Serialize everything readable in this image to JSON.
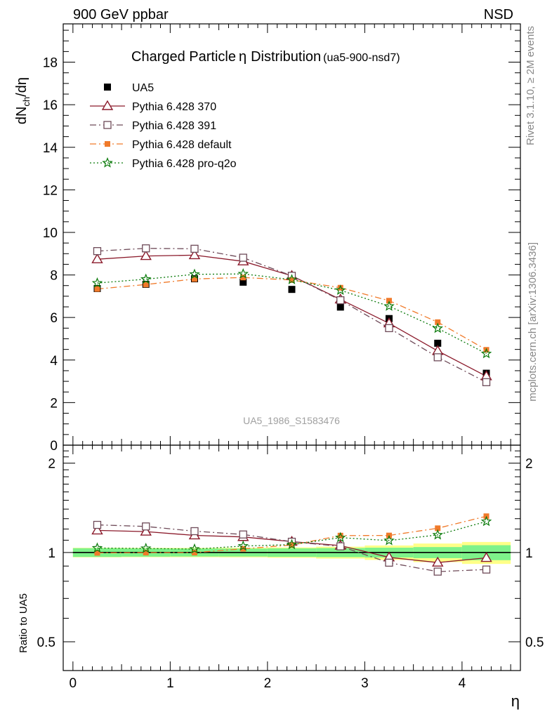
{
  "header": {
    "left": "900 GeV ppbar",
    "right": "NSD"
  },
  "side_labels": {
    "rivet": "Rivet 3.1.10, ≥ 2M events",
    "mcplots": "mcplots.cern.ch [arXiv:1306.3436]"
  },
  "chart_data": [
    {
      "type": "line",
      "title": "Charged Particle",
      "title_symbol": "η",
      "title_tail": "Distribution",
      "subtitle": "(ua5-900-nsd7)",
      "ylabel": "dN",
      "ylabel_sub": "ch",
      "ylabel_tail": "/dη",
      "watermark": "UA5_1986_S1583476",
      "xlim": [
        -0.1,
        4.6
      ],
      "ylim": [
        0,
        19.8
      ],
      "yticks": [
        0,
        2,
        4,
        6,
        8,
        10,
        12,
        14,
        16,
        18
      ],
      "legend_position": "top-left",
      "x": [
        0.25,
        0.75,
        1.25,
        1.75,
        2.25,
        2.75,
        3.25,
        3.75,
        4.25
      ],
      "series": [
        {
          "name": "UA5",
          "color": "#000000",
          "marker": "filled-square",
          "line": "none",
          "values": [
            7.36,
            7.56,
            7.82,
            7.66,
            7.32,
            6.49,
            5.95,
            4.79,
            3.38
          ]
        },
        {
          "name": "Pythia 6.428 370",
          "color": "#8b1a2b",
          "marker": "open-triangle",
          "line": "solid",
          "values": [
            8.74,
            8.89,
            8.93,
            8.64,
            7.96,
            6.85,
            5.73,
            4.43,
            3.24
          ]
        },
        {
          "name": "Pythia 6.428 391",
          "color": "#6e4a58",
          "marker": "open-square",
          "line": "dashdot",
          "values": [
            9.12,
            9.25,
            9.23,
            8.81,
            7.96,
            6.81,
            5.5,
            4.13,
            2.96
          ]
        },
        {
          "name": "Pythia 6.428 default",
          "color": "#f07a2a",
          "marker": "small-filled-square",
          "line": "dashdot",
          "values": [
            7.34,
            7.55,
            7.81,
            7.88,
            7.76,
            7.4,
            6.79,
            5.78,
            4.48
          ]
        },
        {
          "name": "Pythia 6.428 pro-q2o",
          "color": "#0a7a0a",
          "marker": "star",
          "line": "dotted",
          "values": [
            7.62,
            7.8,
            8.03,
            8.05,
            7.78,
            7.28,
            6.53,
            5.49,
            4.3
          ]
        }
      ]
    },
    {
      "type": "line",
      "ylabel": "Ratio to UA5",
      "xlabel": "η",
      "scale": "log",
      "xlim": [
        -0.1,
        4.6
      ],
      "ylim": [
        0.4,
        2.3
      ],
      "yticks": [
        0.5,
        1,
        2
      ],
      "xticks": [
        0,
        1,
        2,
        3,
        4
      ],
      "x": [
        0.25,
        0.75,
        1.25,
        1.75,
        2.25,
        2.75,
        3.25,
        3.75,
        4.25
      ],
      "bands": {
        "edges": [
          0,
          0.5,
          1.0,
          1.5,
          2.0,
          2.5,
          3.0,
          3.5,
          4.0,
          4.5
        ],
        "stat_color": "#7ef28a",
        "syst_color": "#ffff88",
        "stat": [
          0.034,
          0.032,
          0.031,
          0.031,
          0.033,
          0.035,
          0.038,
          0.043,
          0.058
        ],
        "total": [
          0.037,
          0.036,
          0.036,
          0.037,
          0.04,
          0.046,
          0.056,
          0.072,
          0.085
        ]
      },
      "series": [
        {
          "name": "Pythia 6.428 370",
          "values": [
            1.187,
            1.176,
            1.142,
            1.128,
            1.088,
            1.055,
            0.963,
            0.925,
            0.959
          ]
        },
        {
          "name": "Pythia 6.428 391",
          "values": [
            1.239,
            1.224,
            1.18,
            1.15,
            1.087,
            1.049,
            0.924,
            0.862,
            0.876
          ]
        },
        {
          "name": "Pythia 6.428 default",
          "values": [
            0.997,
            0.999,
            0.999,
            1.029,
            1.06,
            1.14,
            1.141,
            1.207,
            1.325
          ]
        },
        {
          "name": "Pythia 6.428 pro-q2o",
          "values": [
            1.035,
            1.032,
            1.027,
            1.051,
            1.063,
            1.122,
            1.097,
            1.146,
            1.272
          ]
        }
      ]
    }
  ]
}
